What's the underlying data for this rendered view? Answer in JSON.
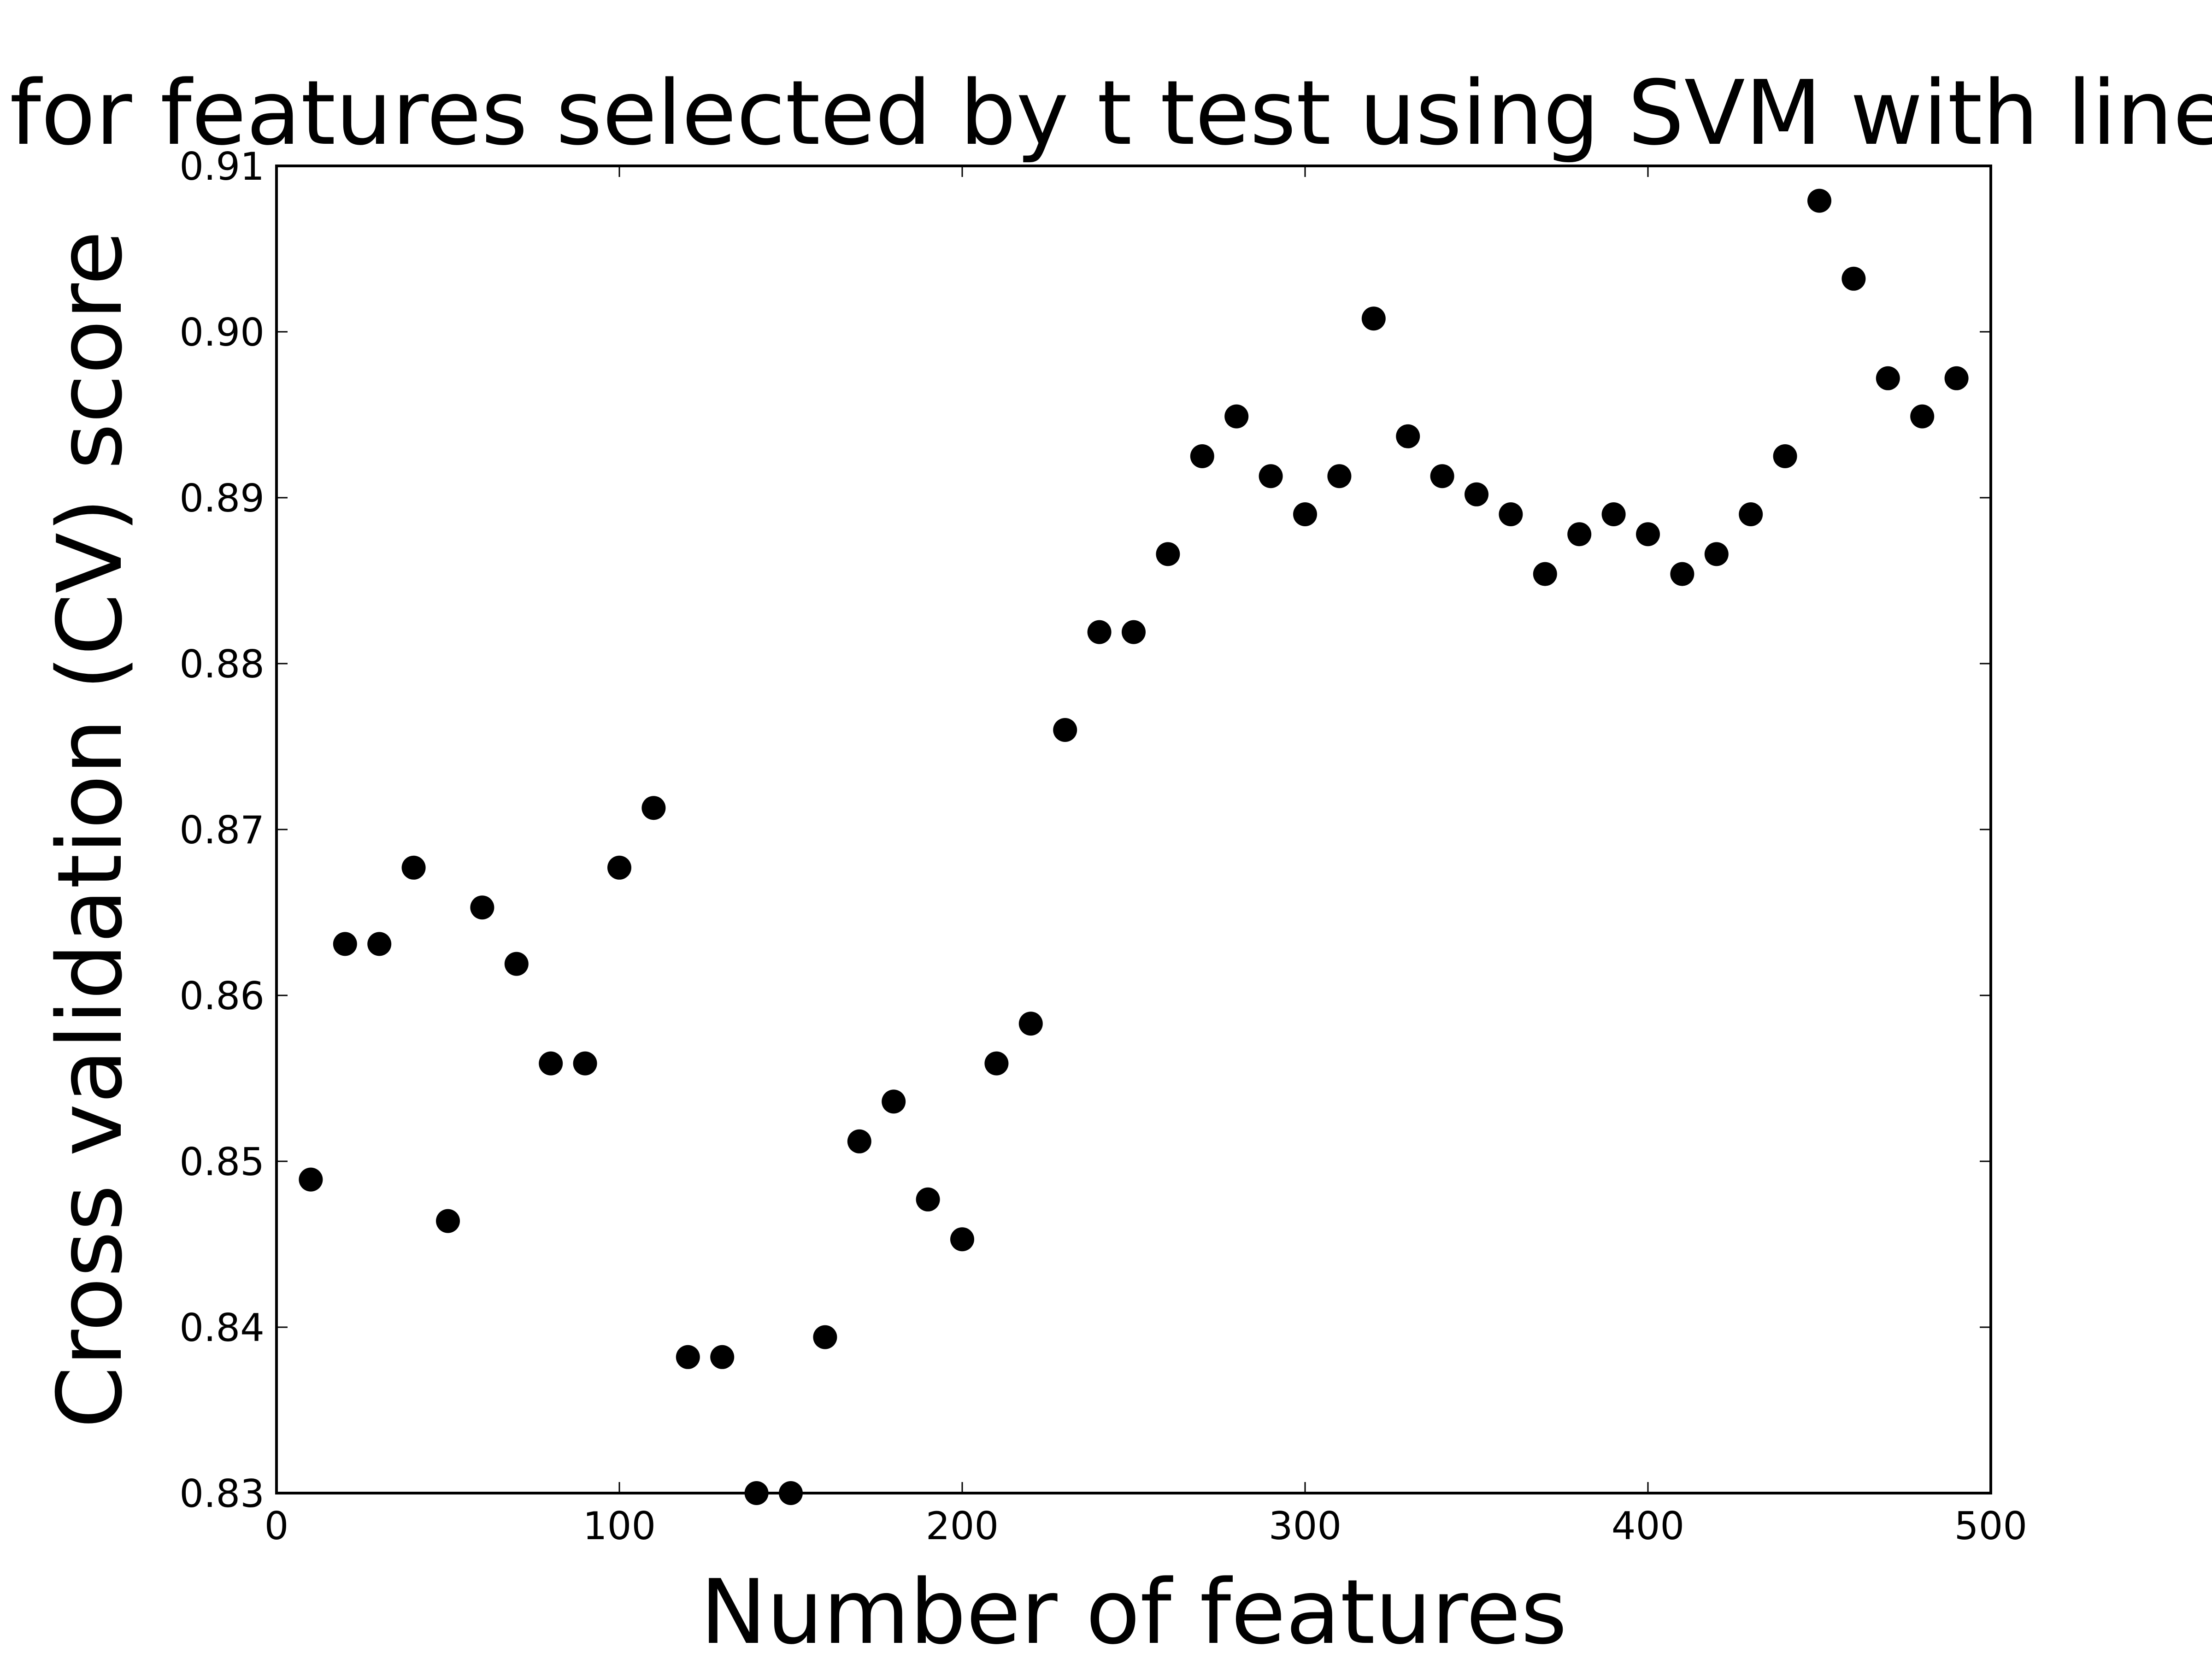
{
  "chart_data": {
    "type": "scatter",
    "title": "CV score for features selected by t test using SVM with linear kernel",
    "xlabel": "Number of features",
    "ylabel": "Cross validation (CV) score",
    "xlim": [
      0,
      500
    ],
    "ylim": [
      0.83,
      0.91
    ],
    "x_ticks": [
      "0",
      "100",
      "200",
      "300",
      "400",
      "500"
    ],
    "y_ticks": [
      "0.83",
      "0.84",
      "0.85",
      "0.86",
      "0.87",
      "0.88",
      "0.89",
      "0.90",
      "0.91"
    ],
    "grid": false,
    "legend": "none",
    "marker_color": "#000000",
    "series": [
      {
        "x": [
          10,
          20,
          30,
          40,
          50,
          60,
          70,
          80,
          90,
          100,
          110,
          120,
          130,
          140,
          150,
          160,
          170,
          180,
          190,
          200,
          210,
          220,
          230,
          240,
          250,
          260,
          270,
          280,
          290,
          300,
          310,
          320,
          330,
          340,
          350,
          360,
          370,
          380,
          390,
          400,
          410,
          420,
          430,
          440,
          450,
          460,
          470,
          480,
          490
        ],
        "y": [
          0.8489,
          0.8631,
          0.8631,
          0.8677,
          0.8464,
          0.8653,
          0.8619,
          0.8559,
          0.8559,
          0.8677,
          0.8713,
          0.8382,
          0.8382,
          0.83,
          0.83,
          0.8394,
          0.8512,
          0.8536,
          0.8477,
          0.8453,
          0.8559,
          0.8583,
          0.876,
          0.8819,
          0.8819,
          0.8866,
          0.8925,
          0.8949,
          0.8913,
          0.889,
          0.8913,
          0.9008,
          0.8937,
          0.8913,
          0.8902,
          0.889,
          0.8854,
          0.8878,
          0.889,
          0.8878,
          0.8854,
          0.8866,
          0.889,
          0.8925,
          0.9079,
          0.9032,
          0.8972,
          0.8949,
          0.8972
        ]
      }
    ]
  }
}
